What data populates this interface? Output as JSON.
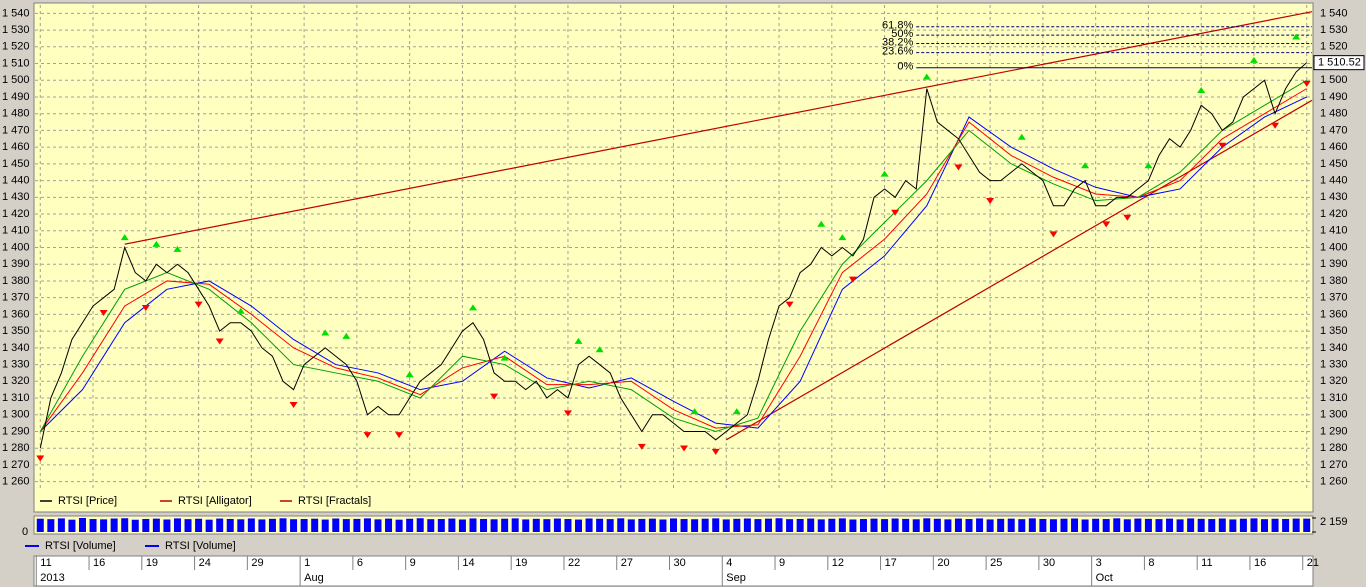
{
  "chart_data": [
    {
      "type": "line",
      "xlim": [
        -0.5,
        120.5
      ],
      "xticks": [
        {
          "value": 0,
          "label": "11"
        },
        {
          "value": 5,
          "label": "16"
        },
        {
          "value": 10,
          "label": "19"
        },
        {
          "value": 15,
          "label": "24"
        },
        {
          "value": 20,
          "label": "29"
        },
        {
          "value": 25,
          "label": "1"
        },
        {
          "value": 30,
          "label": "6"
        },
        {
          "value": 35,
          "label": "9"
        },
        {
          "value": 40,
          "label": "14"
        },
        {
          "value": 45,
          "label": "19"
        },
        {
          "value": 50,
          "label": "22"
        },
        {
          "value": 55,
          "label": "27"
        },
        {
          "value": 60,
          "label": "30"
        },
        {
          "value": 65,
          "label": "4"
        },
        {
          "value": 70,
          "label": "9"
        },
        {
          "value": 75,
          "label": "12"
        },
        {
          "value": 80,
          "label": "17"
        },
        {
          "value": 85,
          "label": "20"
        },
        {
          "value": 90,
          "label": "25"
        },
        {
          "value": 95,
          "label": "30"
        },
        {
          "value": 100,
          "label": "3"
        },
        {
          "value": 105,
          "label": "8"
        },
        {
          "value": 110,
          "label": "11"
        },
        {
          "value": 115,
          "label": "16"
        },
        {
          "value": 120,
          "label": "21"
        }
      ],
      "months": [
        {
          "value": 0,
          "label": "2013"
        },
        {
          "value": 25,
          "label": "Aug"
        },
        {
          "value": 65,
          "label": "Sep"
        },
        {
          "value": 100,
          "label": "Oct"
        }
      ],
      "ylim": [
        1255,
        1545
      ],
      "yticks": [
        {
          "value": 1260,
          "label": "1 260"
        },
        {
          "value": 1270,
          "label": "1 270"
        },
        {
          "value": 1280,
          "label": "1 280"
        },
        {
          "value": 1290,
          "label": "1 290"
        },
        {
          "value": 1300,
          "label": "1 300"
        },
        {
          "value": 1310,
          "label": "1 310"
        },
        {
          "value": 1320,
          "label": "1 320"
        },
        {
          "value": 1330,
          "label": "1 330"
        },
        {
          "value": 1340,
          "label": "1 340"
        },
        {
          "value": 1350,
          "label": "1 350"
        },
        {
          "value": 1360,
          "label": "1 360"
        },
        {
          "value": 1370,
          "label": "1 370"
        },
        {
          "value": 1380,
          "label": "1 380"
        },
        {
          "value": 1390,
          "label": "1 390"
        },
        {
          "value": 1400,
          "label": "1 400"
        },
        {
          "value": 1410,
          "label": "1 410"
        },
        {
          "value": 1420,
          "label": "1 420"
        },
        {
          "value": 1430,
          "label": "1 430"
        },
        {
          "value": 1440,
          "label": "1 440"
        },
        {
          "value": 1450,
          "label": "1 450"
        },
        {
          "value": 1460,
          "label": "1 460"
        },
        {
          "value": 1470,
          "label": "1 470"
        },
        {
          "value": 1480,
          "label": "1 480"
        },
        {
          "value": 1490,
          "label": "1 490"
        },
        {
          "value": 1500,
          "label": "1 500"
        },
        {
          "value": 1510,
          "label": "1 510"
        },
        {
          "value": 1520,
          "label": "1 520"
        },
        {
          "value": 1530,
          "label": "1 530"
        },
        {
          "value": 1540,
          "label": "1 540"
        }
      ],
      "grid": true,
      "series": [
        {
          "name": "RTSI [Price]",
          "color": "#000000",
          "values": [
            1280,
            1310,
            1325,
            1345,
            1355,
            1365,
            1370,
            1375,
            1400,
            1385,
            1380,
            1390,
            1385,
            1390,
            1385,
            1375,
            1365,
            1350,
            1355,
            1355,
            1350,
            1340,
            1335,
            1320,
            1315,
            1330,
            1335,
            1340,
            1335,
            1330,
            1320,
            1300,
            1305,
            1300,
            1300,
            1310,
            1320,
            1325,
            1330,
            1340,
            1350,
            1355,
            1345,
            1325,
            1320,
            1320,
            1315,
            1320,
            1310,
            1315,
            1310,
            1330,
            1335,
            1330,
            1325,
            1310,
            1300,
            1290,
            1300,
            1300,
            1295,
            1290,
            1290,
            1290,
            1285,
            1290,
            1295,
            1300,
            1320,
            1345,
            1365,
            1370,
            1385,
            1390,
            1400,
            1395,
            1400,
            1395,
            1405,
            1430,
            1435,
            1430,
            1440,
            1435,
            1495,
            1475,
            1470,
            1465,
            1455,
            1445,
            1440,
            1440,
            1445,
            1450,
            1445,
            1440,
            1425,
            1425,
            1435,
            1440,
            1425,
            1425,
            1430,
            1430,
            1435,
            1440,
            1455,
            1465,
            1460,
            1470,
            1485,
            1480,
            1470,
            1475,
            1490,
            1495,
            1500,
            1480,
            1495,
            1505,
            1510.52
          ]
        }
      ],
      "last_label": "1 510.52",
      "alligator": {
        "name": "RTSI [Alligator]",
        "color": "#c00000",
        "x": [
          0,
          4,
          8,
          12,
          16,
          20,
          24,
          28,
          32,
          36,
          40,
          44,
          48,
          52,
          56,
          60,
          64,
          68,
          72,
          76,
          80,
          84,
          88,
          92,
          96,
          100,
          104,
          108,
          112,
          116,
          120
        ],
        "lines": [
          {
            "color": "#0000ff",
            "values": [
              1290,
              1315,
              1355,
              1375,
              1380,
              1365,
              1345,
              1330,
              1325,
              1315,
              1320,
              1338,
              1322,
              1316,
              1322,
              1308,
              1295,
              1292,
              1320,
              1375,
              1395,
              1425,
              1478,
              1460,
              1447,
              1436,
              1430,
              1435,
              1460,
              1478,
              1490
            ]
          },
          {
            "color": "#ff0000",
            "values": [
              1290,
              1325,
              1365,
              1380,
              1378,
              1360,
              1340,
              1328,
              1322,
              1312,
              1328,
              1335,
              1318,
              1318,
              1320,
              1303,
              1292,
              1294,
              1335,
              1385,
              1405,
              1432,
              1475,
              1455,
              1442,
              1432,
              1430,
              1440,
              1465,
              1480,
              1495
            ]
          },
          {
            "color": "#00a000",
            "values": [
              1290,
              1335,
              1375,
              1385,
              1375,
              1355,
              1330,
              1325,
              1320,
              1310,
              1335,
              1330,
              1315,
              1320,
              1315,
              1298,
              1290,
              1298,
              1350,
              1390,
              1415,
              1440,
              1470,
              1450,
              1438,
              1428,
              1430,
              1445,
              1470,
              1485,
              1500
            ]
          }
        ]
      },
      "fractals": {
        "name": "RTSI [Fractals]",
        "color": "#c00000",
        "up": {
          "color": "#00e000",
          "x": [
            8,
            11,
            13,
            19,
            27,
            29,
            35,
            41,
            44,
            51,
            53,
            62,
            66,
            74,
            76,
            80,
            84,
            93,
            99,
            105,
            110,
            115,
            119
          ],
          "values": [
            1402,
            1398,
            1395,
            1358,
            1345,
            1343,
            1320,
            1360,
            1330,
            1340,
            1335,
            1298,
            1298,
            1410,
            1402,
            1440,
            1498,
            1462,
            1445,
            1445,
            1490,
            1508,
            1522
          ]
        },
        "down": {
          "color": "#ff0000",
          "x": [
            0,
            6,
            10,
            15,
            17,
            24,
            31,
            34,
            43,
            50,
            57,
            61,
            64,
            71,
            77,
            81,
            87,
            90,
            96,
            101,
            103,
            112,
            117,
            120
          ],
          "values": [
            1278,
            1365,
            1368,
            1370,
            1348,
            1310,
            1292,
            1292,
            1315,
            1305,
            1285,
            1284,
            1282,
            1370,
            1385,
            1425,
            1452,
            1432,
            1412,
            1418,
            1422,
            1465,
            1477,
            1502
          ]
        }
      },
      "trendlines": {
        "color": "#c00000",
        "lines": [
          {
            "x": [
              8,
              120.5
            ],
            "values": [
              1402,
              1541
            ]
          },
          {
            "x": [
              65,
              120.5
            ],
            "values": [
              1285,
              1488
            ]
          }
        ]
      },
      "fibonacci": {
        "color": "#000080",
        "x_start": 83,
        "levels": [
          {
            "value": 1507.5,
            "label": "0%"
          },
          {
            "value": 1516.5,
            "label": "23.6%"
          },
          {
            "value": 1522,
            "label": "38.2%"
          },
          {
            "value": 1527,
            "label": "50%"
          },
          {
            "value": 1532,
            "label": "61.8%"
          }
        ]
      }
    },
    {
      "type": "bar",
      "legend": [
        "RTSI [Volume]",
        "RTSI [Volume]"
      ],
      "color": "#0000ff",
      "ylim": [
        0,
        2159
      ],
      "yticks": [
        0,
        {
          "value": 2159,
          "label": "2 159"
        }
      ],
      "values": [
        2050,
        1980,
        2100,
        1900,
        2159,
        2000,
        1950,
        2080,
        2120,
        1890,
        2010,
        2060,
        1930,
        2100,
        1980,
        2040,
        1900,
        2070,
        2010,
        1960,
        2090,
        1940,
        2030,
        2110,
        1970,
        2000,
        2050,
        1920,
        2080,
        1990,
        2020,
        2100,
        1950,
        2060,
        1900,
        2040,
        2120,
        1980,
        2000,
        2070,
        1930,
        2090,
        2010,
        1960,
        2050,
        2100,
        1940,
        2030,
        1980,
        2070,
        2000,
        1920,
        2080,
        2040,
        1990,
        2110,
        1950,
        2020,
        2060,
        1930,
        2090,
        2000,
        1970,
        2050,
        2100,
        1940,
        2030,
        2080,
        1990,
        2060,
        2120,
        1980,
        2010,
        2070,
        1950,
        2040,
        2100,
        1930,
        2000,
        2060,
        1990,
        2080,
        2020,
        1960,
        2110,
        2040,
        1950,
        2070,
        2000,
        2090,
        1940,
        2030,
        2060,
        1980,
        2100,
        2010,
        1970,
        2050,
        2080,
        1930,
        2040,
        2000,
        2110,
        1960,
        2070,
        2020,
        1990,
        2060,
        1950,
        2090,
        2030,
        2000,
        2080,
        1940,
        2050,
        2100,
        1980,
        2040,
        2010,
        2070,
        2060
      ]
    }
  ]
}
